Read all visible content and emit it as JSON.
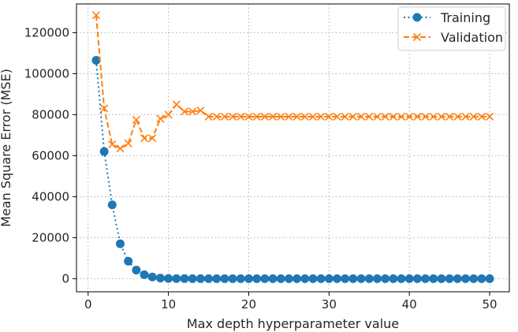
{
  "chart_data": {
    "type": "line",
    "title": "",
    "xlabel": "Max depth hyperparameter value",
    "ylabel": "Mean Square Error (MSE)",
    "xlim": [
      -1.45,
      52.45
    ],
    "ylim": [
      -6400,
      134000
    ],
    "xticks": [
      0,
      10,
      20,
      30,
      40,
      50
    ],
    "yticks": [
      0,
      20000,
      40000,
      60000,
      80000,
      100000,
      120000
    ],
    "grid": true,
    "legend_position": "top-right",
    "x": [
      1,
      2,
      3,
      4,
      5,
      6,
      7,
      8,
      9,
      10,
      11,
      12,
      13,
      14,
      15,
      16,
      17,
      18,
      19,
      20,
      21,
      22,
      23,
      24,
      25,
      26,
      27,
      28,
      29,
      30,
      31,
      32,
      33,
      34,
      35,
      36,
      37,
      38,
      39,
      40,
      41,
      42,
      43,
      44,
      45,
      46,
      47,
      48,
      49,
      50
    ],
    "series": [
      {
        "name": "Training",
        "color": "#1f77b4",
        "linestyle": "dotted",
        "marker": "circle",
        "values": [
          106500,
          62000,
          36000,
          17000,
          8500,
          4200,
          1900,
          800,
          300,
          100,
          50,
          20,
          10,
          5,
          0,
          0,
          0,
          0,
          0,
          0,
          0,
          0,
          0,
          0,
          0,
          0,
          0,
          0,
          0,
          0,
          0,
          0,
          0,
          0,
          0,
          0,
          0,
          0,
          0,
          0,
          0,
          0,
          0,
          0,
          0,
          0,
          0,
          0,
          0,
          0
        ]
      },
      {
        "name": "Validation",
        "color": "#ff7f0e",
        "linestyle": "dashed",
        "marker": "x",
        "values": [
          128500,
          83000,
          65500,
          63500,
          66000,
          77500,
          68500,
          68500,
          78000,
          80000,
          85000,
          81500,
          81500,
          82000,
          79000,
          79000,
          79000,
          79000,
          79000,
          79000,
          79000,
          79000,
          79000,
          79000,
          79000,
          79000,
          79000,
          79000,
          79000,
          79000,
          79000,
          79000,
          79000,
          79000,
          79000,
          79000,
          79000,
          79000,
          79000,
          79000,
          79000,
          79000,
          79000,
          79000,
          79000,
          79000,
          79000,
          79000,
          79000,
          79000
        ]
      }
    ]
  }
}
